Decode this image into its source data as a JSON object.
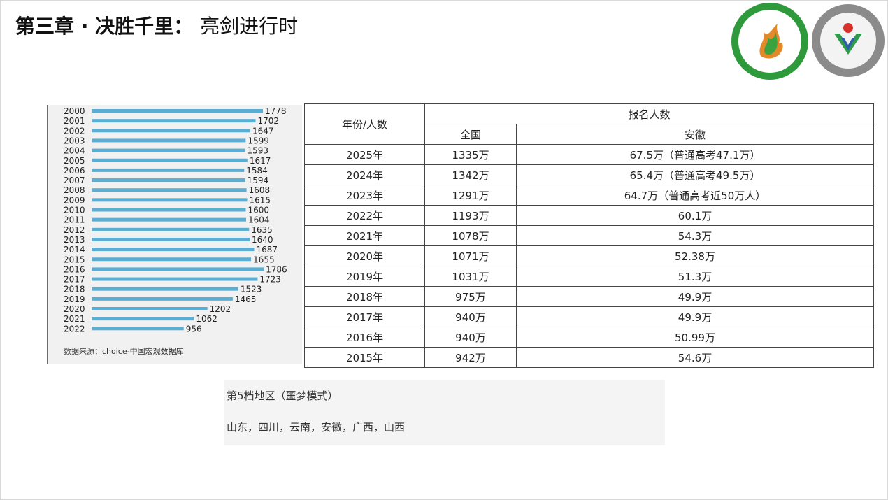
{
  "header": {
    "title_bold": "第三章 · 决胜千里：",
    "title_rest": "亮剑进行时"
  },
  "chart_data": {
    "type": "bar",
    "orientation": "horizontal",
    "categories": [
      "2000",
      "2001",
      "2002",
      "2003",
      "2004",
      "2005",
      "2006",
      "2007",
      "2008",
      "2009",
      "2010",
      "2011",
      "2012",
      "2013",
      "2014",
      "2015",
      "2016",
      "2017",
      "2018",
      "2019",
      "2020",
      "2021",
      "2022"
    ],
    "values": [
      1778,
      1702,
      1647,
      1599,
      1593,
      1617,
      1584,
      1594,
      1608,
      1615,
      1600,
      1604,
      1635,
      1640,
      1687,
      1655,
      1786,
      1723,
      1523,
      1465,
      1202,
      1062,
      956
    ],
    "bar_color": "#5aaed4",
    "source": "数据来源：choice-中国宏观数据库"
  },
  "table": {
    "header_year": "年份/人数",
    "header_group": "报名人数",
    "header_national": "全国",
    "header_anhui": "安徽",
    "rows": [
      {
        "year": "2025年",
        "national": "1335万",
        "anhui": "67.5万（普通高考47.1万）"
      },
      {
        "year": "2024年",
        "national": "1342万",
        "anhui": "65.4万（普通高考49.5万）"
      },
      {
        "year": "2023年",
        "national": "1291万",
        "anhui": "64.7万（普通高考近50万人）"
      },
      {
        "year": "2022年",
        "national": "1193万",
        "anhui": "60.1万"
      },
      {
        "year": "2021年",
        "national": "1078万",
        "anhui": "54.3万"
      },
      {
        "year": "2020年",
        "national": "1071万",
        "anhui": "52.38万"
      },
      {
        "year": "2019年",
        "national": "1031万",
        "anhui": "51.3万"
      },
      {
        "year": "2018年",
        "national": "975万",
        "anhui": "49.9万"
      },
      {
        "year": "2017年",
        "national": "940万",
        "anhui": "49.9万"
      },
      {
        "year": "2016年",
        "national": "940万",
        "anhui": "50.99万"
      },
      {
        "year": "2015年",
        "national": "942万",
        "anhui": "54.6万"
      }
    ]
  },
  "note": {
    "title": "第5档地区（噩梦模式）",
    "body": "山东，四川，云南，安徽，广西，山西"
  },
  "logos": {
    "left": "logo-168-school-green",
    "right": "logo-hefei-168-high-school"
  }
}
